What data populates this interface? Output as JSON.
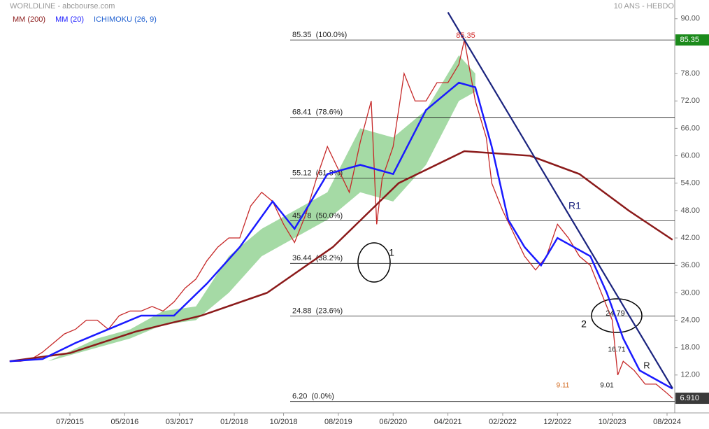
{
  "chart_data": {
    "type": "line",
    "title": "WORLDLINE - abcbourse.com",
    "subtitle": "10 ANS - HEBDO",
    "ylim": [
      3.7,
      94.1
    ],
    "yticks": [
      {
        "value": 90,
        "label": "90.00"
      },
      {
        "value": 78,
        "label": "78.00"
      },
      {
        "value": 72,
        "label": "72.00"
      },
      {
        "value": 66,
        "label": "66.00"
      },
      {
        "value": 60,
        "label": "60.00"
      },
      {
        "value": 54,
        "label": "54.00"
      },
      {
        "value": 48,
        "label": "48.00"
      },
      {
        "value": 42,
        "label": "42.00"
      },
      {
        "value": 36,
        "label": "36.00"
      },
      {
        "value": 30,
        "label": "30.00"
      },
      {
        "value": 24,
        "label": "24.00"
      },
      {
        "value": 18,
        "label": "18.00"
      },
      {
        "value": 12,
        "label": "12.00"
      }
    ],
    "xticks": [
      "07/2015",
      "05/2016",
      "03/2017",
      "01/2018",
      "10/2018",
      "08/2019",
      "06/2020",
      "04/2021",
      "02/2022",
      "12/2022",
      "10/2023",
      "08/2024"
    ],
    "price": {
      "color": "#c62828",
      "x": [
        "08/2014",
        "10/2014",
        "12/2014",
        "02/2015",
        "04/2015",
        "06/2015",
        "08/2015",
        "10/2015",
        "12/2015",
        "02/2016",
        "04/2016",
        "06/2016",
        "08/2016",
        "10/2016",
        "12/2016",
        "02/2017",
        "04/2017",
        "06/2017",
        "08/2017",
        "10/2017",
        "12/2017",
        "02/2018",
        "04/2018",
        "06/2018",
        "08/2018",
        "10/2018",
        "12/2018",
        "02/2019",
        "04/2019",
        "06/2019",
        "08/2019",
        "10/2019",
        "12/2019",
        "02/2020",
        "03/2020",
        "04/2020",
        "06/2020",
        "08/2020",
        "10/2020",
        "12/2020",
        "02/2021",
        "04/2021",
        "06/2021",
        "07/2021",
        "09/2021",
        "11/2021",
        "12/2021",
        "02/2022",
        "04/2022",
        "06/2022",
        "08/2022",
        "10/2022",
        "12/2022",
        "02/2023",
        "04/2023",
        "06/2023",
        "08/2023",
        "10/2023",
        "11/2023",
        "12/2023",
        "02/2024",
        "04/2024",
        "06/2024",
        "08/2024",
        "09/2024"
      ],
      "values": [
        15,
        15,
        15.5,
        17,
        19,
        21,
        22,
        24,
        24,
        22,
        25,
        26,
        26,
        27,
        26,
        28,
        31,
        33,
        37,
        40,
        42,
        42,
        49,
        52,
        50,
        45,
        41,
        47,
        55,
        62,
        57,
        52,
        63,
        72,
        45,
        55,
        62,
        78,
        72,
        72,
        76,
        76,
        80,
        85.35,
        72,
        64,
        54,
        48,
        43,
        38,
        35,
        38,
        45,
        42,
        38,
        36,
        30,
        24,
        12,
        15,
        13,
        10,
        10,
        8,
        6.91
      ]
    },
    "series": [
      {
        "name": "MM (200)",
        "color": "#8b1a1a",
        "x": [
          "08/2014",
          "07/2015",
          "07/2016",
          "07/2017",
          "07/2018",
          "07/2019",
          "07/2020",
          "07/2021",
          "07/2022",
          "04/2023",
          "01/2024",
          "09/2024"
        ],
        "values": [
          15,
          16.8,
          21.5,
          25,
          30,
          40,
          54,
          61,
          60,
          56,
          48,
          41.6
        ]
      },
      {
        "name": "MM (20)",
        "color": "#1a1aff",
        "x": [
          "08/2014",
          "02/2015",
          "08/2015",
          "02/2016",
          "08/2016",
          "02/2017",
          "08/2017",
          "02/2018",
          "08/2018",
          "12/2018",
          "06/2019",
          "12/2019",
          "06/2020",
          "12/2020",
          "06/2021",
          "09/2021",
          "12/2021",
          "03/2022",
          "06/2022",
          "09/2022",
          "12/2022",
          "03/2023",
          "06/2023",
          "09/2023",
          "12/2023",
          "03/2024",
          "06/2024",
          "09/2024"
        ],
        "values": [
          15,
          15.5,
          19,
          22,
          25,
          25,
          32,
          40,
          50,
          44,
          56,
          58,
          56,
          70,
          76,
          75,
          62,
          46,
          40,
          36,
          42,
          40,
          38,
          30,
          20,
          13,
          11,
          9
        ]
      }
    ],
    "ichimoku": {
      "name": "ICHIMOKU (26, 9)",
      "color": "#1e5fd0",
      "fill": "#8fd18f",
      "x": [
        "03/2015",
        "12/2015",
        "06/2016",
        "12/2016",
        "06/2017",
        "12/2017",
        "06/2018",
        "12/2018",
        "06/2019",
        "12/2019",
        "06/2020",
        "12/2020",
        "06/2021",
        "09/2021"
      ],
      "upper": [
        15,
        20,
        22,
        26,
        27,
        38,
        44,
        48,
        52,
        66,
        64,
        70,
        82,
        78
      ],
      "lower": [
        15,
        18,
        20,
        23,
        24,
        30,
        38,
        42,
        46,
        52,
        50,
        58,
        72,
        74
      ]
    },
    "fibonacci": [
      {
        "value": 85.35,
        "label": "85.35  (100.0%)"
      },
      {
        "value": 68.41,
        "label": "68.41  (78.6%)"
      },
      {
        "value": 55.12,
        "label": "55.12  (61.8%)"
      },
      {
        "value": 45.78,
        "label": "45.78  (50.0%)"
      },
      {
        "value": 36.44,
        "label": "36.44  (38.2%)"
      },
      {
        "value": 24.88,
        "label": "24.88  (23.6%)"
      },
      {
        "value": 6.2,
        "label": "6.20  (0.0%)"
      }
    ],
    "trendlines": [
      {
        "name": "R1",
        "color": "#1a237e",
        "x": [
          "04/2021",
          "09/2024"
        ],
        "values": [
          91.4,
          9.1
        ]
      }
    ],
    "annotations": [
      "85.35",
      "1",
      "2",
      "24.79",
      "16.71",
      "9.11",
      "9.01",
      "R"
    ],
    "price_tags": [
      {
        "value": 85.35,
        "label": "85.35",
        "color": "#1b8a1b"
      },
      {
        "value": 6.91,
        "label": "6.910",
        "color": "#3a3a3a"
      }
    ]
  }
}
